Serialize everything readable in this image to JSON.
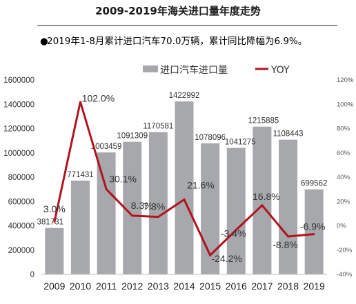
{
  "header": {
    "title": "2009-2019年海关进口量年度走势",
    "bullet": "●",
    "subtitle": "2019年1-8月累计进口汽车70.0万辆，累计同比降幅为6.9%。"
  },
  "chart_data": {
    "type": "bar+line",
    "categories": [
      "2009",
      "2010",
      "2011",
      "2012",
      "2013",
      "2014",
      "2015",
      "2016",
      "2017",
      "2018",
      "2019"
    ],
    "series": [
      {
        "name": "进口汽车进口量",
        "type": "bar",
        "axis": "left",
        "color": "#a6a8ab",
        "values": [
          381731,
          771431,
          1003459,
          1091309,
          1170581,
          1422992,
          1078096,
          1041275,
          1215885,
          1108443,
          699562
        ],
        "labels": [
          "381731",
          "771431",
          "1003459",
          "1091309",
          "1170581",
          "1422992",
          "1078096",
          "1041275",
          "1215885",
          "1108443",
          "699562"
        ]
      },
      {
        "name": "YOY",
        "type": "line",
        "axis": "right",
        "color": "#b1121f",
        "values": [
          3.0,
          102.0,
          30.1,
          8.3,
          7.3,
          21.6,
          -24.2,
          -3.4,
          16.8,
          -8.8,
          -6.9
        ],
        "labels": [
          "3.0%",
          "102.0%",
          "30.1%",
          "8.3%",
          "7.3%",
          "21.6%",
          "-24.2%",
          "-3.4%",
          "16.8%",
          "-8.8%",
          "-6.9%"
        ]
      }
    ],
    "y_left": {
      "range": [
        0,
        1600000
      ],
      "ticks": [
        "0",
        "200000",
        "400000",
        "600000",
        "800000",
        "1000000",
        "1200000",
        "1400000",
        "1600000"
      ]
    },
    "y_right": {
      "range": [
        -40,
        120
      ],
      "ticks": [
        "-40%",
        "-20%",
        "0%",
        "20%",
        "40%",
        "60%",
        "80%",
        "100%",
        "120%"
      ]
    },
    "legend_position": "top",
    "grid": false
  },
  "colors": {
    "bar": "#a6a8ab",
    "line": "#b1121f",
    "title_rule": "#222222"
  }
}
